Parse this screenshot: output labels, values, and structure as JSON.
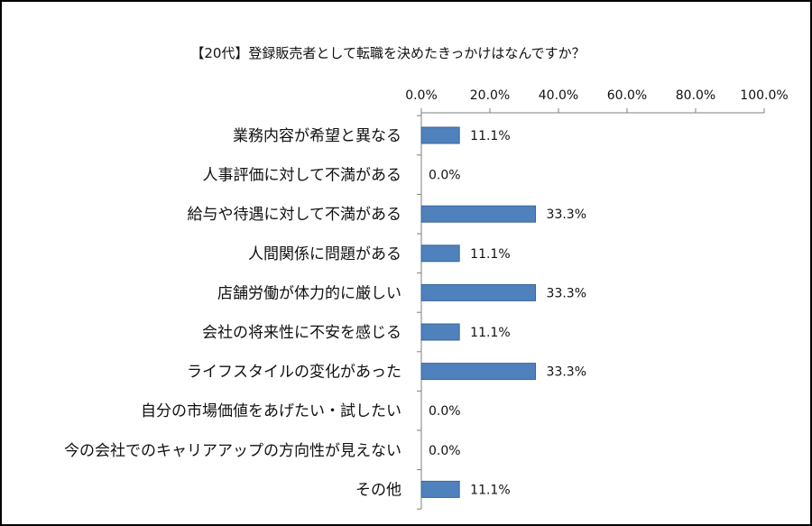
{
  "chart_data": {
    "type": "bar",
    "orientation": "horizontal",
    "title": "【20代】登録販売者として転職を決めたきっかけはなんですか？",
    "categories": [
      "業務内容が希望と異なる",
      "人事評価に対して不満がある",
      "給与や待遇に対して不満がある",
      "人間関係に問題がある",
      "店舗労働が体力的に厳しい",
      "会社の将来性に不安を感じる",
      "ライフスタイルの変化があった",
      "自分の市場価値をあげたい・試したい",
      "今の会社でのキャリアアップの方向性が見えない",
      "その他"
    ],
    "values": [
      11.1,
      0.0,
      33.3,
      11.1,
      33.3,
      11.1,
      33.3,
      0.0,
      0.0,
      11.1
    ],
    "data_labels": [
      "11.1%",
      "0.0%",
      "33.3%",
      "11.1%",
      "33.3%",
      "11.1%",
      "33.3%",
      "0.0%",
      "0.0%",
      "11.1%"
    ],
    "xlim": [
      0,
      100
    ],
    "ticks": [
      0,
      20,
      40,
      60,
      80,
      100
    ],
    "tick_labels": [
      "0.0%",
      "20.0%",
      "40.0%",
      "60.0%",
      "80.0%",
      "100.0%"
    ],
    "axis_position": "top",
    "grid": false,
    "legend": "none",
    "bar_color": "#4F81BD",
    "bar_border_color": "#3A6599"
  }
}
